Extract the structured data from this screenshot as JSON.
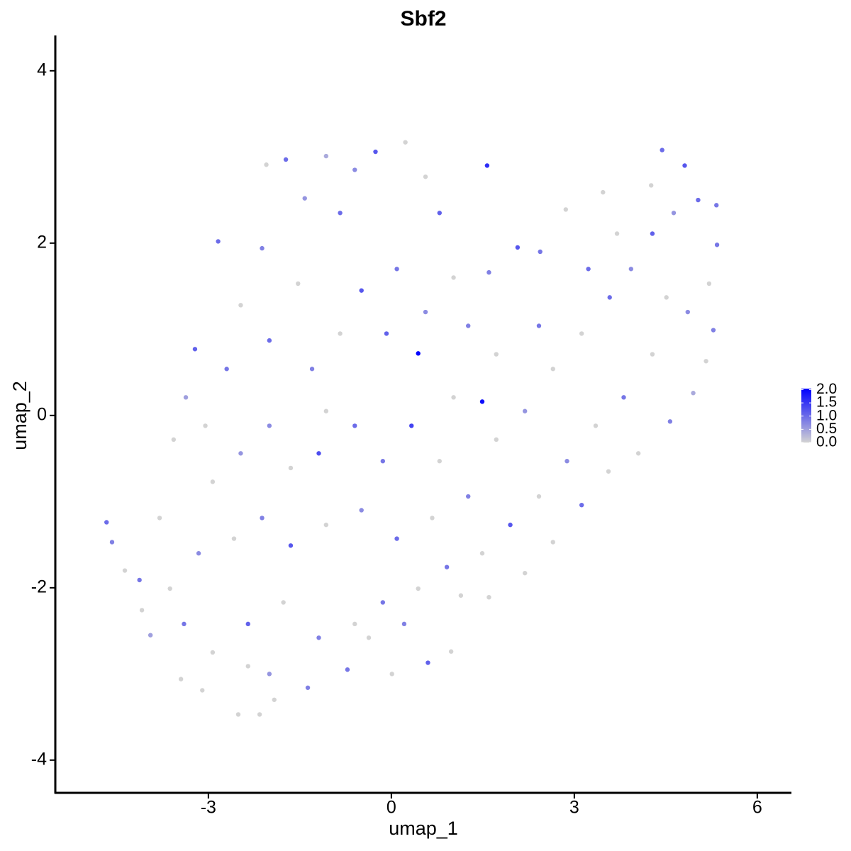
{
  "chart_data": {
    "type": "scatter",
    "title": "Sbf2",
    "x_label": "umap_1",
    "y_label": "umap_2",
    "xlim": [
      -5.51,
      6.56
    ],
    "ylim": [
      -4.38,
      4.41
    ],
    "xticks": [
      -3,
      0,
      3,
      6
    ],
    "yticks": [
      -4,
      -2,
      0,
      2,
      4
    ],
    "low_color": "#d3d3d3",
    "high_color": "#0000ff",
    "color_lim": [
      0,
      2.04
    ],
    "color_ticks": [
      {
        "value": 0,
        "label": "0.0"
      },
      {
        "value": 0.5,
        "label": "0.5"
      },
      {
        "value": 1,
        "label": "1.0"
      },
      {
        "value": 1.5,
        "label": "1.5"
      },
      {
        "value": 2,
        "label": "2.0"
      }
    ],
    "x": [
      0.44,
      1.49,
      1.57,
      -4.67,
      -4.58,
      -4.37,
      -2.51,
      -2.16,
      4.44,
      5.34,
      0.23,
      -0.26,
      -1.07,
      -1.73,
      -2.05,
      -2.84,
      -3.22,
      -3.37,
      -3.57,
      -3.8,
      -4.13,
      -3.95,
      -3.45,
      -3.1,
      -1.92,
      -1.37,
      -0.72,
      0.01,
      0.6,
      0.98,
      1.14,
      1.6,
      2.19,
      2.65,
      3.12,
      3.56,
      4.05,
      4.57,
      4.95,
      5.16,
      5.28,
      5.21,
      5.33,
      5.03,
      4.81,
      4.26,
      3.47,
      2.86,
      2.44,
      2.07,
      1.6,
      1.02,
      0.56,
      -0.08,
      -0.49,
      -0.84,
      -1.42,
      -2.12,
      -2.47,
      -2.7,
      -2.0,
      -1.65,
      -1.19,
      -0.6,
      -0.14,
      0.33,
      0.79,
      1.26,
      1.72,
      2.19,
      2.65,
      3.12,
      3.58,
      3.93,
      4.28,
      4.63,
      3.81,
      3.35,
      2.88,
      2.42,
      1.95,
      1.49,
      0.91,
      0.44,
      -0.14,
      -0.6,
      -1.19,
      -1.77,
      -2.35,
      -2.93,
      -3.4,
      -3.63,
      -3.16,
      -2.58,
      -2.12,
      -1.65,
      -1.07,
      -0.49,
      0.09,
      0.67,
      -2.93,
      -2.47,
      -3.05,
      -1.3,
      -0.84,
      -2.0,
      -1.53,
      0.09,
      0.79,
      0.56,
      -0.6,
      1.26,
      1.72,
      2.42,
      3.23,
      3.7,
      4.51,
      4.86,
      4.28,
      1.02,
      -1.07,
      -4.09,
      -2.35,
      -2.0,
      -0.37,
      0.21
    ],
    "y": [
      0.72,
      0.16,
      2.9,
      -1.24,
      -1.47,
      -1.8,
      -3.47,
      -3.47,
      3.08,
      1.98,
      3.17,
      3.06,
      3.01,
      2.97,
      2.91,
      2.02,
      0.77,
      0.21,
      -0.28,
      -1.19,
      -1.91,
      -2.55,
      -3.06,
      -3.19,
      -3.3,
      -3.16,
      -2.95,
      -3.0,
      -2.87,
      -2.74,
      -2.09,
      -2.11,
      -1.83,
      -1.47,
      -1.04,
      -0.65,
      -0.44,
      -0.07,
      0.26,
      0.63,
      0.99,
      1.53,
      2.44,
      2.5,
      2.9,
      2.67,
      2.59,
      2.39,
      1.9,
      1.95,
      1.66,
      1.6,
      1.2,
      0.95,
      1.45,
      2.35,
      2.52,
      1.94,
      1.28,
      0.54,
      -0.12,
      -0.61,
      -0.44,
      -0.12,
      -0.53,
      -0.12,
      -0.53,
      -0.94,
      -0.28,
      0.05,
      0.54,
      0.95,
      1.37,
      1.7,
      2.11,
      2.35,
      0.21,
      -0.12,
      -0.53,
      -0.94,
      -1.27,
      -1.6,
      -1.76,
      -2.01,
      -2.17,
      -2.42,
      -2.58,
      -2.17,
      -2.42,
      -2.75,
      -2.42,
      -2.01,
      -1.6,
      -1.43,
      -1.19,
      -1.51,
      -1.27,
      -1.1,
      -1.43,
      -1.19,
      -0.77,
      -0.44,
      -0.12,
      0.54,
      0.95,
      0.87,
      1.53,
      1.7,
      2.35,
      2.77,
      2.85,
      1.04,
      0.71,
      1.04,
      1.7,
      2.11,
      1.37,
      1.2,
      0.71,
      0.21,
      0.05,
      -2.26,
      -2.91,
      -3.0,
      -2.58,
      -2.42
    ],
    "values": [
      2.0,
      1.9,
      1.6,
      1.0,
      0.8,
      0,
      0,
      0,
      1.0,
      0.9,
      0,
      1.2,
      0.4,
      1.0,
      0,
      1.0,
      1.1,
      0.5,
      0,
      0,
      0.9,
      0.5,
      0,
      0,
      0,
      0.8,
      0.9,
      0,
      1.1,
      0,
      0,
      0,
      0,
      0,
      1.0,
      0,
      0,
      0.8,
      0.4,
      0,
      0.8,
      0,
      0.9,
      1.0,
      1.2,
      0,
      0,
      0,
      0.9,
      1.2,
      0.8,
      0,
      0.7,
      1.1,
      1.2,
      1.0,
      0.6,
      0.8,
      0,
      0.9,
      0.7,
      0,
      1.3,
      1.0,
      0.9,
      1.4,
      0,
      0.8,
      0,
      0.6,
      0,
      0,
      1.0,
      0.7,
      1.1,
      0.6,
      0.9,
      0,
      0.7,
      0,
      1.2,
      0,
      0.9,
      0,
      0.9,
      0,
      0.8,
      0,
      1.1,
      0,
      0.9,
      0,
      0.7,
      0,
      0.8,
      1.2,
      0,
      0.7,
      1.0,
      0,
      0,
      0.6,
      0,
      0.8,
      0,
      1.0,
      0,
      0.9,
      1.1,
      0,
      0.7,
      0.8,
      0,
      0.9,
      1.0,
      0,
      0,
      0.7,
      0,
      0,
      0,
      0,
      0,
      0.6,
      0,
      0.8
    ]
  }
}
